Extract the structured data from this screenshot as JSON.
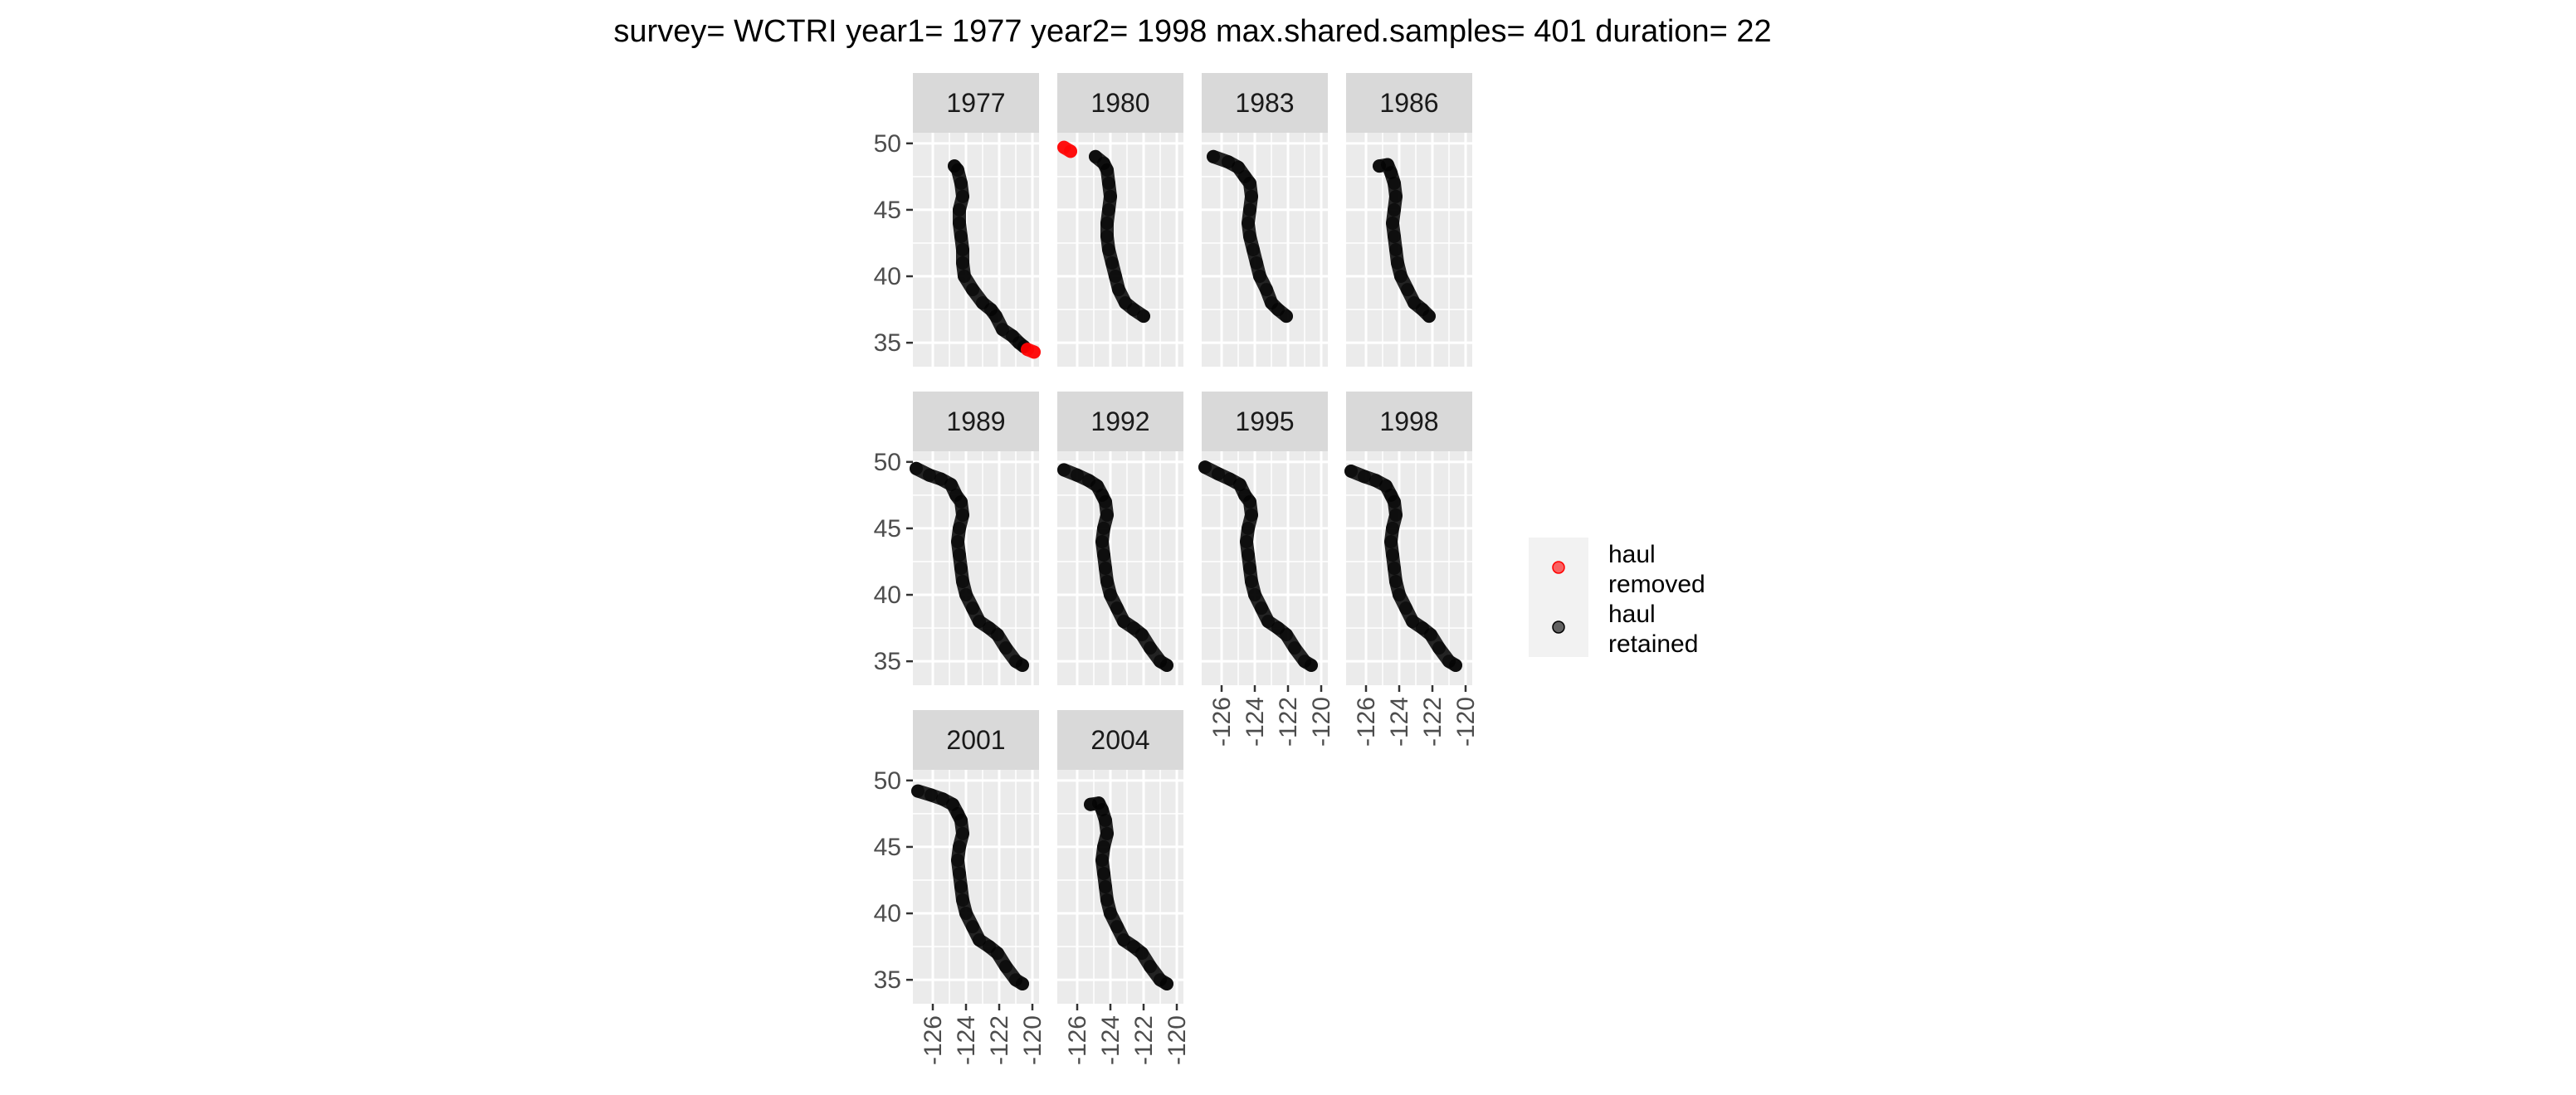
{
  "chart_data": {
    "type": "scatter",
    "title": "survey= WCTRI year1= 1977 year2= 1998 max.shared.samples= 401 duration= 22",
    "xlabel": "",
    "ylabel": "",
    "xlim": [
      -127.2,
      -119.6
    ],
    "ylim": [
      33.2,
      50.8
    ],
    "x_ticks": [
      -126,
      -124,
      -122,
      -120
    ],
    "x_tick_labels": [
      "-126",
      "-124",
      "-122",
      "-120"
    ],
    "y_ticks": [
      35,
      40,
      45,
      50
    ],
    "y_tick_labels": [
      "35",
      "40",
      "45",
      "50"
    ],
    "grid": true,
    "legend_position": "right",
    "colors": {
      "removed": "#ff0000",
      "retained": "#000000",
      "panel_bg": "#ebebeb",
      "strip_bg": "#d9d9d9",
      "grid": "#ffffff"
    },
    "legend": [
      {
        "key": "removed",
        "label_lines": [
          "haul",
          "removed"
        ]
      },
      {
        "key": "retained",
        "label_lines": [
          "haul",
          "retained"
        ]
      }
    ],
    "panels": [
      {
        "year": "1977",
        "retained": [
          [
            -124.7,
            48.3
          ],
          [
            -124.5,
            48.0
          ],
          [
            -124.3,
            47.0
          ],
          [
            -124.2,
            46.0
          ],
          [
            -124.4,
            45.0
          ],
          [
            -124.4,
            44.0
          ],
          [
            -124.3,
            43.0
          ],
          [
            -124.2,
            42.0
          ],
          [
            -124.2,
            41.0
          ],
          [
            -124.1,
            40.0
          ],
          [
            -123.6,
            39.0
          ],
          [
            -123.0,
            38.0
          ],
          [
            -122.5,
            37.5
          ],
          [
            -122.2,
            37.0
          ],
          [
            -121.8,
            36.0
          ],
          [
            -121.2,
            35.5
          ],
          [
            -120.8,
            35.0
          ],
          [
            -120.5,
            34.7
          ]
        ],
        "removed": [
          [
            -120.3,
            34.5
          ],
          [
            -119.9,
            34.3
          ]
        ]
      },
      {
        "year": "1980",
        "retained": [
          [
            -124.9,
            49.0
          ],
          [
            -124.4,
            48.5
          ],
          [
            -124.2,
            48.0
          ],
          [
            -124.1,
            47.0
          ],
          [
            -124.0,
            46.0
          ],
          [
            -124.1,
            45.0
          ],
          [
            -124.2,
            44.0
          ],
          [
            -124.2,
            43.0
          ],
          [
            -124.1,
            42.0
          ],
          [
            -123.9,
            41.0
          ],
          [
            -123.7,
            40.0
          ],
          [
            -123.5,
            39.0
          ],
          [
            -123.1,
            38.0
          ],
          [
            -122.6,
            37.5
          ],
          [
            -122.0,
            37.0
          ]
        ],
        "removed": [
          [
            -126.8,
            49.7
          ],
          [
            -126.4,
            49.4
          ]
        ]
      },
      {
        "year": "1983",
        "retained": [
          [
            -126.5,
            49.0
          ],
          [
            -125.6,
            48.6
          ],
          [
            -125.0,
            48.2
          ],
          [
            -124.6,
            47.5
          ],
          [
            -124.3,
            47.0
          ],
          [
            -124.2,
            46.0
          ],
          [
            -124.3,
            45.0
          ],
          [
            -124.4,
            44.0
          ],
          [
            -124.3,
            43.0
          ],
          [
            -124.1,
            42.0
          ],
          [
            -123.9,
            41.0
          ],
          [
            -123.7,
            40.0
          ],
          [
            -123.3,
            39.0
          ],
          [
            -123.0,
            38.0
          ],
          [
            -122.6,
            37.5
          ],
          [
            -122.1,
            37.0
          ]
        ],
        "removed": []
      },
      {
        "year": "1986",
        "retained": [
          [
            -125.2,
            48.3
          ],
          [
            -124.7,
            48.4
          ],
          [
            -124.5,
            47.8
          ],
          [
            -124.3,
            47.0
          ],
          [
            -124.2,
            46.0
          ],
          [
            -124.3,
            45.0
          ],
          [
            -124.4,
            44.0
          ],
          [
            -124.3,
            43.0
          ],
          [
            -124.2,
            42.0
          ],
          [
            -124.1,
            41.0
          ],
          [
            -123.9,
            40.0
          ],
          [
            -123.5,
            39.0
          ],
          [
            -123.1,
            38.0
          ],
          [
            -122.6,
            37.5
          ],
          [
            -122.2,
            37.0
          ]
        ],
        "removed": []
      },
      {
        "year": "1989",
        "retained": [
          [
            -127.0,
            49.5
          ],
          [
            -126.2,
            49.0
          ],
          [
            -125.5,
            48.7
          ],
          [
            -124.9,
            48.3
          ],
          [
            -124.6,
            47.5
          ],
          [
            -124.3,
            47.0
          ],
          [
            -124.2,
            46.0
          ],
          [
            -124.4,
            45.0
          ],
          [
            -124.5,
            44.0
          ],
          [
            -124.4,
            43.0
          ],
          [
            -124.3,
            42.0
          ],
          [
            -124.2,
            41.0
          ],
          [
            -124.0,
            40.0
          ],
          [
            -123.6,
            39.0
          ],
          [
            -123.2,
            38.0
          ],
          [
            -122.6,
            37.5
          ],
          [
            -122.1,
            37.0
          ],
          [
            -121.6,
            36.0
          ],
          [
            -121.0,
            35.0
          ],
          [
            -120.6,
            34.7
          ]
        ],
        "removed": []
      },
      {
        "year": "1992",
        "retained": [
          [
            -126.8,
            49.4
          ],
          [
            -126.0,
            49.0
          ],
          [
            -125.3,
            48.6
          ],
          [
            -124.8,
            48.2
          ],
          [
            -124.5,
            47.5
          ],
          [
            -124.3,
            47.0
          ],
          [
            -124.2,
            46.0
          ],
          [
            -124.4,
            45.0
          ],
          [
            -124.5,
            44.0
          ],
          [
            -124.4,
            43.0
          ],
          [
            -124.3,
            42.0
          ],
          [
            -124.2,
            41.0
          ],
          [
            -124.0,
            40.0
          ],
          [
            -123.6,
            39.0
          ],
          [
            -123.2,
            38.0
          ],
          [
            -122.6,
            37.5
          ],
          [
            -122.1,
            37.0
          ],
          [
            -121.6,
            36.0
          ],
          [
            -121.0,
            35.0
          ],
          [
            -120.6,
            34.7
          ]
        ],
        "removed": []
      },
      {
        "year": "1995",
        "retained": [
          [
            -127.0,
            49.6
          ],
          [
            -126.2,
            49.1
          ],
          [
            -125.5,
            48.7
          ],
          [
            -124.9,
            48.3
          ],
          [
            -124.6,
            47.5
          ],
          [
            -124.3,
            47.0
          ],
          [
            -124.2,
            46.0
          ],
          [
            -124.4,
            45.0
          ],
          [
            -124.5,
            44.0
          ],
          [
            -124.4,
            43.0
          ],
          [
            -124.3,
            42.0
          ],
          [
            -124.2,
            41.0
          ],
          [
            -124.0,
            40.0
          ],
          [
            -123.6,
            39.0
          ],
          [
            -123.2,
            38.0
          ],
          [
            -122.6,
            37.5
          ],
          [
            -122.1,
            37.0
          ],
          [
            -121.6,
            36.0
          ],
          [
            -121.0,
            35.0
          ],
          [
            -120.6,
            34.7
          ]
        ],
        "removed": []
      },
      {
        "year": "1998",
        "retained": [
          [
            -126.9,
            49.3
          ],
          [
            -126.1,
            48.9
          ],
          [
            -125.4,
            48.6
          ],
          [
            -124.8,
            48.2
          ],
          [
            -124.5,
            47.5
          ],
          [
            -124.3,
            47.0
          ],
          [
            -124.2,
            46.0
          ],
          [
            -124.4,
            45.0
          ],
          [
            -124.5,
            44.0
          ],
          [
            -124.4,
            43.0
          ],
          [
            -124.3,
            42.0
          ],
          [
            -124.2,
            41.0
          ],
          [
            -124.0,
            40.0
          ],
          [
            -123.6,
            39.0
          ],
          [
            -123.2,
            38.0
          ],
          [
            -122.6,
            37.5
          ],
          [
            -122.1,
            37.0
          ],
          [
            -121.6,
            36.0
          ],
          [
            -121.0,
            35.0
          ],
          [
            -120.6,
            34.7
          ]
        ],
        "removed": []
      },
      {
        "year": "2001",
        "retained": [
          [
            -126.9,
            49.2
          ],
          [
            -126.1,
            48.9
          ],
          [
            -125.4,
            48.6
          ],
          [
            -124.8,
            48.2
          ],
          [
            -124.5,
            47.5
          ],
          [
            -124.3,
            47.0
          ],
          [
            -124.2,
            46.0
          ],
          [
            -124.4,
            45.0
          ],
          [
            -124.5,
            44.0
          ],
          [
            -124.4,
            43.0
          ],
          [
            -124.3,
            42.0
          ],
          [
            -124.2,
            41.0
          ],
          [
            -124.0,
            40.0
          ],
          [
            -123.6,
            39.0
          ],
          [
            -123.2,
            38.0
          ],
          [
            -122.6,
            37.5
          ],
          [
            -122.1,
            37.0
          ],
          [
            -121.6,
            36.0
          ],
          [
            -121.0,
            35.0
          ],
          [
            -120.6,
            34.7
          ]
        ],
        "removed": []
      },
      {
        "year": "2004",
        "retained": [
          [
            -125.2,
            48.2
          ],
          [
            -124.7,
            48.3
          ],
          [
            -124.5,
            47.8
          ],
          [
            -124.3,
            47.0
          ],
          [
            -124.2,
            46.0
          ],
          [
            -124.4,
            45.0
          ],
          [
            -124.5,
            44.0
          ],
          [
            -124.4,
            43.0
          ],
          [
            -124.3,
            42.0
          ],
          [
            -124.2,
            41.0
          ],
          [
            -124.0,
            40.0
          ],
          [
            -123.6,
            39.0
          ],
          [
            -123.2,
            38.0
          ],
          [
            -122.6,
            37.5
          ],
          [
            -122.1,
            37.0
          ],
          [
            -121.6,
            36.0
          ],
          [
            -121.0,
            35.0
          ],
          [
            -120.6,
            34.7
          ]
        ],
        "removed": []
      }
    ]
  }
}
